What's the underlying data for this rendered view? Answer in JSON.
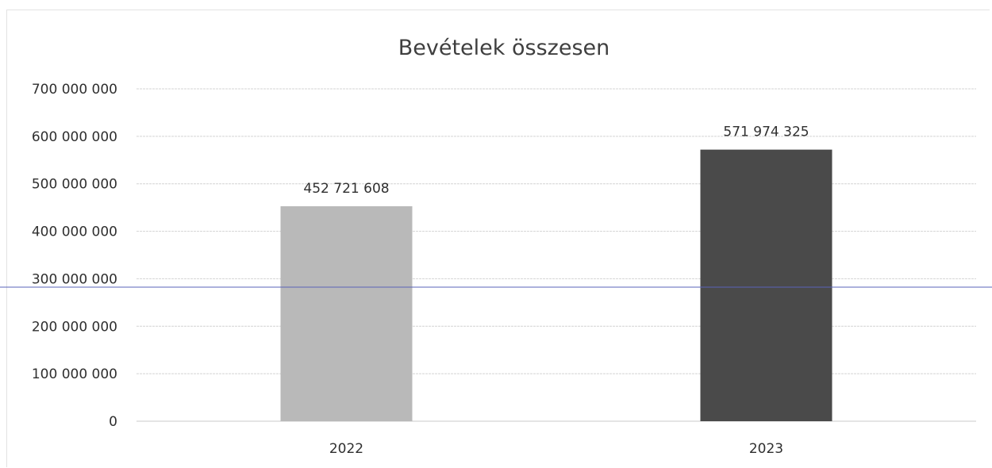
{
  "chart_data": {
    "type": "bar",
    "title": "Bevételek összesen",
    "xlabel": "",
    "ylabel": "",
    "categories": [
      "2022",
      "2023"
    ],
    "values": [
      452721608,
      571974325
    ],
    "value_labels": [
      "452 721 608",
      "571 974 325"
    ],
    "bar_colors": [
      "#b9b9b9",
      "#4a4a4a"
    ],
    "ylim": [
      0,
      700000000
    ],
    "y_ticks": [
      0,
      100000000,
      200000000,
      300000000,
      400000000,
      500000000,
      600000000,
      700000000
    ],
    "y_tick_labels": [
      "0",
      "100 000 000",
      "200 000 000",
      "300 000 000",
      "400 000 000",
      "500 000 000",
      "600 000 000",
      "700 000 000"
    ],
    "grid": true,
    "legend": "none"
  }
}
